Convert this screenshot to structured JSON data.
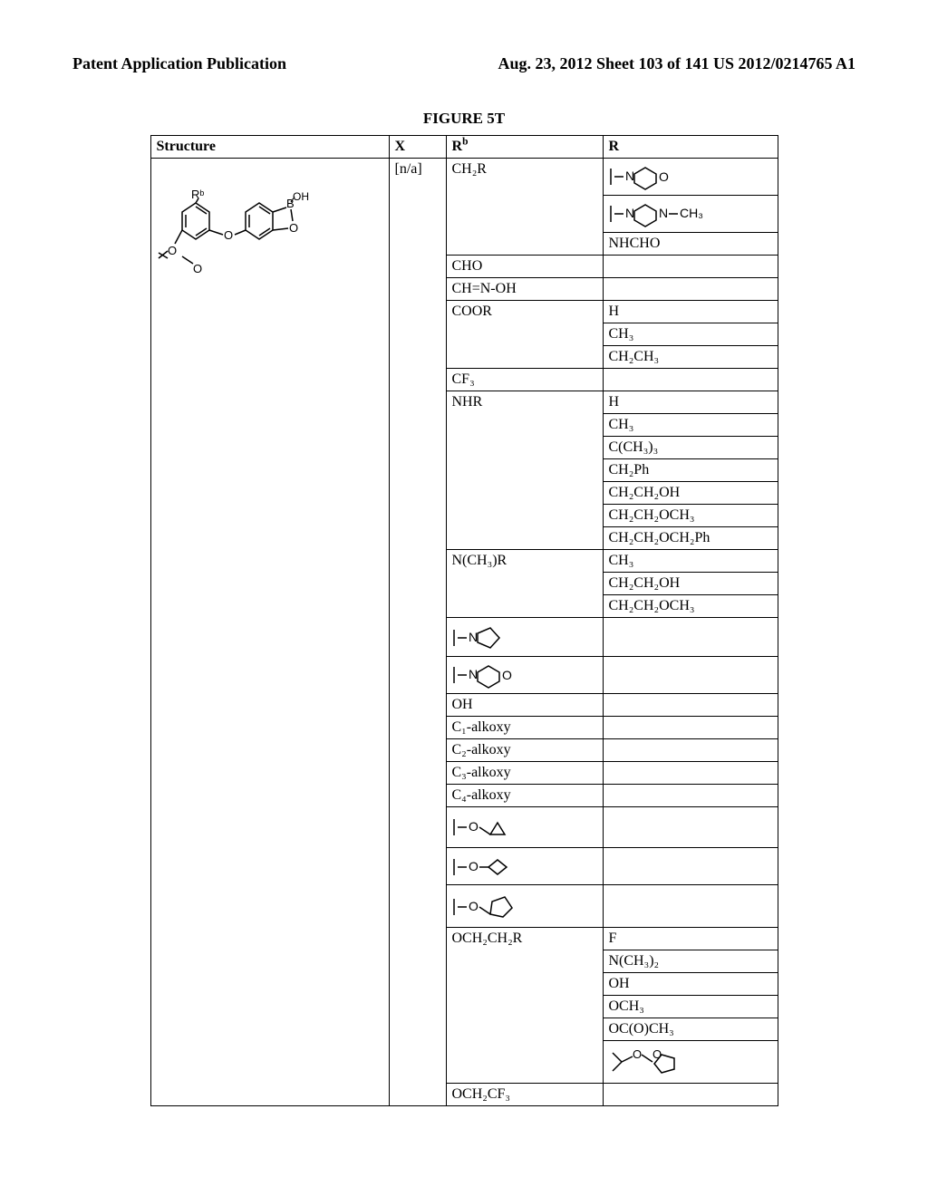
{
  "header": {
    "left": "Patent Application Publication",
    "right": "Aug. 23, 2012  Sheet 103 of 141   US 2012/0214765 A1"
  },
  "figure_title": "FIGURE 5T",
  "table": {
    "headers": {
      "structure": "Structure",
      "x": "X",
      "rb_label_prefix": "R",
      "rb_label_sup": "b",
      "r": "R"
    },
    "x_value": "[n/a]",
    "rb_groups": [
      {
        "type": "text",
        "value": "CH₂R",
        "r_items": [
          {
            "type": "svg",
            "kind": "morpholine"
          },
          {
            "type": "svg",
            "kind": "n-methylpiperazine"
          },
          {
            "type": "text",
            "value": "NHCHO"
          }
        ]
      },
      {
        "type": "text",
        "value": "CHO",
        "r_items": []
      },
      {
        "type": "text",
        "value": "CH=N-OH",
        "r_items": []
      },
      {
        "type": "text",
        "value": "COOR",
        "r_items": [
          {
            "type": "text",
            "value": "H"
          },
          {
            "type": "text",
            "value": "CH₃"
          },
          {
            "type": "text",
            "value": "CH₂CH₃"
          }
        ]
      },
      {
        "type": "text",
        "value": "CF₃",
        "r_items": []
      },
      {
        "type": "text",
        "value": "NHR",
        "r_items": [
          {
            "type": "text",
            "value": "H"
          },
          {
            "type": "text",
            "value": "CH₃"
          },
          {
            "type": "text",
            "value": "C(CH₃)₃"
          },
          {
            "type": "text",
            "value": "CH₂Ph"
          },
          {
            "type": "text",
            "value": "CH₂CH₂OH"
          },
          {
            "type": "text",
            "value": "CH₂CH₂OCH₃"
          },
          {
            "type": "text",
            "value": "CH₂CH₂OCH₂Ph"
          }
        ]
      },
      {
        "type": "text",
        "value": "N(CH₃)R",
        "r_items": [
          {
            "type": "text",
            "value": "CH₃"
          },
          {
            "type": "text",
            "value": "CH₂CH₂OH"
          },
          {
            "type": "text",
            "value": "CH₂CH₂OCH₃"
          }
        ]
      },
      {
        "type": "svg",
        "kind": "pyrrolidine",
        "r_items": []
      },
      {
        "type": "svg",
        "kind": "morpholine",
        "r_items": []
      },
      {
        "type": "text",
        "value": "OH",
        "r_items": []
      },
      {
        "type": "text",
        "value": "C₁-alkoxy",
        "r_items": []
      },
      {
        "type": "text",
        "value": "C₂-alkoxy",
        "r_items": []
      },
      {
        "type": "text",
        "value": "C₃-alkoxy",
        "r_items": []
      },
      {
        "type": "text",
        "value": "C₄-alkoxy",
        "r_items": []
      },
      {
        "type": "svg",
        "kind": "o-cyclopropyl",
        "r_items": []
      },
      {
        "type": "svg",
        "kind": "o-cyclobutyl",
        "r_items": []
      },
      {
        "type": "svg",
        "kind": "o-ch2-cyclopentyl",
        "r_items": []
      },
      {
        "type": "text",
        "value": "OCH₂CH₂R",
        "r_items": [
          {
            "type": "text",
            "value": "F"
          },
          {
            "type": "text",
            "value": "N(CH₃)₂"
          },
          {
            "type": "text",
            "value": "OH"
          },
          {
            "type": "text",
            "value": "OCH₃"
          },
          {
            "type": "text",
            "value": "OC(O)CH₃"
          },
          {
            "type": "svg",
            "kind": "dioxolane"
          }
        ]
      },
      {
        "type": "text",
        "value": "OCH₂CF₃",
        "r_items": []
      }
    ]
  },
  "style": {
    "font_family": "Times New Roman",
    "header_fontsize": 18,
    "body_fontsize": 16,
    "border_color": "#000000",
    "background": "#ffffff"
  }
}
